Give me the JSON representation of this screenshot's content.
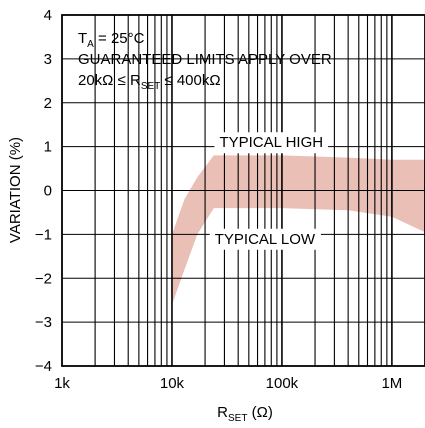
{
  "chart_data": {
    "type": "area",
    "x_scale": "log",
    "y_scale": "linear",
    "xlim": [
      1000,
      2000000
    ],
    "ylim": [
      -4,
      4
    ],
    "grid": true,
    "x_ticks": [
      {
        "value": 1000,
        "label": "1k"
      },
      {
        "value": 10000,
        "label": "10k"
      },
      {
        "value": 100000,
        "label": "100k"
      },
      {
        "value": 1000000,
        "label": "1M"
      }
    ],
    "y_ticks": [
      {
        "value": 4,
        "label": "4"
      },
      {
        "value": 3,
        "label": "3"
      },
      {
        "value": 2,
        "label": "2"
      },
      {
        "value": 1,
        "label": "1"
      },
      {
        "value": 0,
        "label": "0"
      },
      {
        "value": -1,
        "label": "-1"
      },
      {
        "value": -2,
        "label": "-2"
      },
      {
        "value": -3,
        "label": "-3"
      },
      {
        "value": -4,
        "label": "-4"
      }
    ],
    "ylabel": "VARIATION (%)",
    "xlabel": {
      "main": "R",
      "sub": "SET",
      "suffix": " (Ω)"
    },
    "conditions": {
      "line1": {
        "main": "T",
        "sub": "A",
        "suffix": " = 25°C"
      },
      "line2": "GUARANTEED LIMITS APPLY OVER",
      "line3": {
        "prefix": "20kΩ ≤ R",
        "sub": "SET",
        "suffix": " ≤ 400kΩ"
      }
    },
    "band": {
      "color": "#e9bfb6",
      "x": [
        10000,
        13000,
        17000,
        24000,
        100000,
        400000,
        1000000,
        2000000
      ],
      "upper": [
        -1.0,
        -0.2,
        0.3,
        0.8,
        0.8,
        0.75,
        0.7,
        0.7
      ],
      "lower": [
        -2.6,
        -1.8,
        -1.0,
        -0.4,
        -0.4,
        -0.45,
        -0.6,
        -0.95
      ]
    },
    "annotations": [
      {
        "text": "TYPICAL HIGH",
        "x": 80000,
        "y": 1.1
      },
      {
        "text": "TYPICAL LOW",
        "x": 70000,
        "y": -1.1
      }
    ]
  }
}
